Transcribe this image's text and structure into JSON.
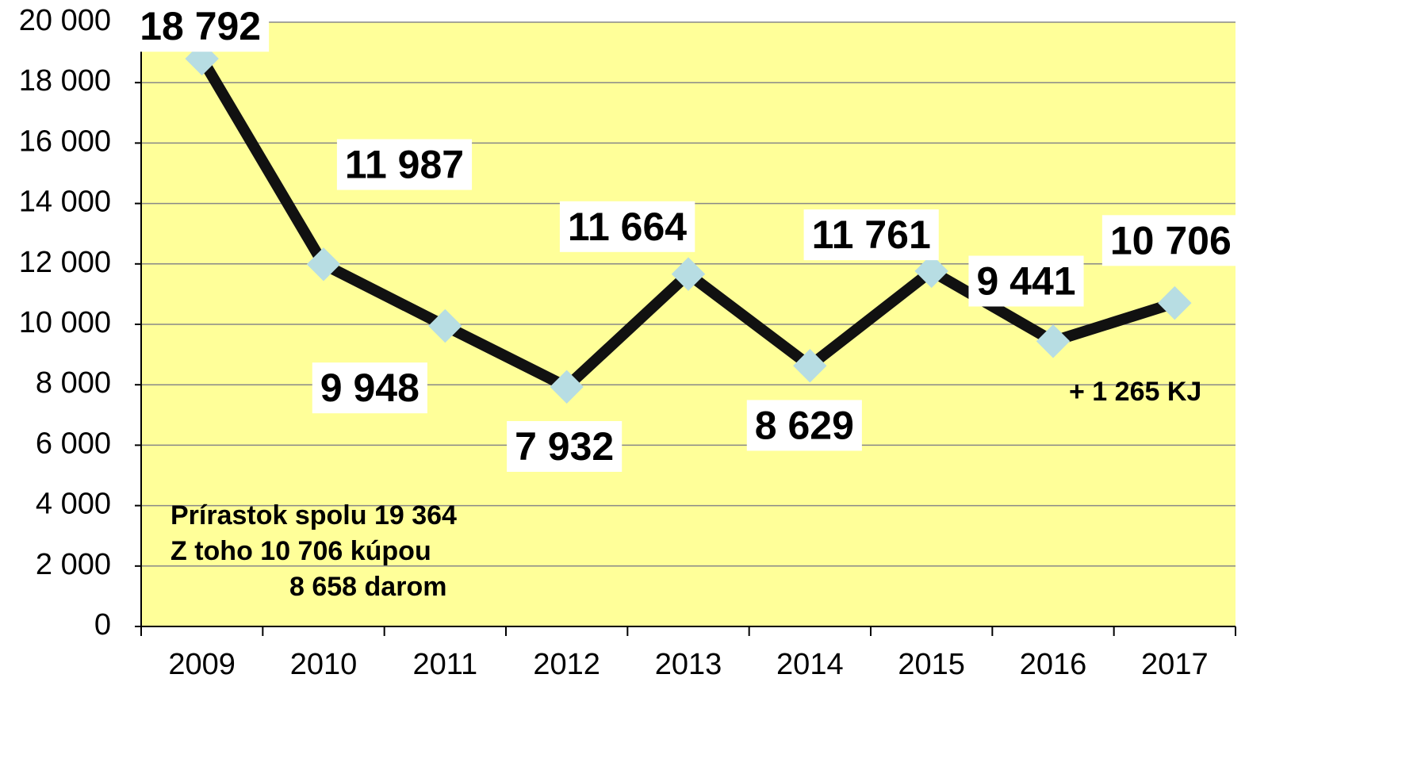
{
  "chart_data": {
    "type": "line",
    "categories": [
      "2009",
      "2010",
      "2011",
      "2012",
      "2013",
      "2014",
      "2015",
      "2016",
      "2017"
    ],
    "series": [
      {
        "color": "#111111",
        "values": [
          18792,
          11987,
          9948,
          7932,
          11664,
          8629,
          11761,
          9441,
          10706
        ],
        "value_labels": [
          "18 792",
          "11 987",
          "9 948",
          "7 932",
          "11 664",
          "8 629",
          "11 761",
          "9 441",
          "10 706"
        ]
      }
    ],
    "marker_color": "#b7dde3",
    "plot_background": "#ffff99",
    "ylim": [
      0,
      20000
    ],
    "yticks": [
      0,
      {
        "value": 2000,
        "label": "2 000"
      },
      {
        "value": 4000,
        "label": "4 000"
      },
      {
        "value": 6000,
        "label": "6 000"
      },
      {
        "value": 8000,
        "label": "8 000"
      },
      {
        "value": 10000,
        "label": "10 000"
      },
      {
        "value": 12000,
        "label": "12 000"
      },
      {
        "value": 14000,
        "label": "14 000"
      },
      {
        "value": 16000,
        "label": "16 000"
      },
      {
        "value": 18000,
        "label": "18 000"
      },
      {
        "value": 20000,
        "label": "20 000"
      }
    ],
    "grid": true,
    "annotations": [
      "Prírastok spolu 19 364",
      "Z toho 10 706 kúpou",
      "8 658 darom",
      "+ 1 265 KJ"
    ]
  }
}
